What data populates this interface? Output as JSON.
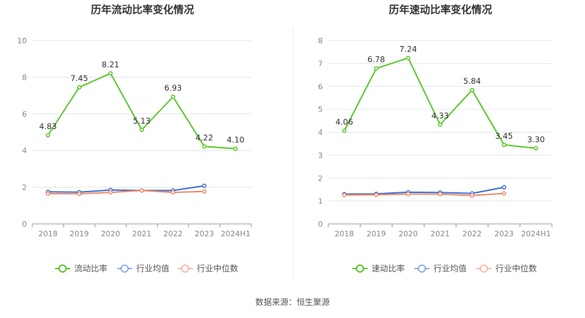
{
  "source": "数据来源：恒生聚源",
  "colors": {
    "main": "#5bc72b",
    "avg": "#3d6fd6",
    "median": "#ee8a66",
    "grid": "#e6e6e6",
    "axis": "#999999"
  },
  "chart_data": [
    {
      "type": "line",
      "title": "历年流动比率变化情况",
      "categories": [
        "2018",
        "2019",
        "2020",
        "2021",
        "2022",
        "2023",
        "2024H1"
      ],
      "ylim": [
        0,
        10
      ],
      "yticks": [
        0,
        2,
        4,
        6,
        8,
        10
      ],
      "grid": true,
      "legend_position": "bottom",
      "series": [
        {
          "name": "流动比率",
          "role": "main",
          "values": [
            4.83,
            7.45,
            8.21,
            5.13,
            6.93,
            4.22,
            4.1
          ],
          "labels": [
            "4.83",
            "7.45",
            "8.21",
            "5.13",
            "6.93",
            "4.22",
            "4.10"
          ]
        },
        {
          "name": "行业均值",
          "role": "avg",
          "values": [
            1.75,
            1.73,
            1.85,
            1.82,
            1.82,
            2.08,
            null
          ]
        },
        {
          "name": "行业中位数",
          "role": "median",
          "values": [
            1.65,
            1.64,
            1.72,
            1.82,
            1.72,
            1.77,
            null
          ]
        }
      ]
    },
    {
      "type": "line",
      "title": "历年速动比率变化情况",
      "categories": [
        "2018",
        "2019",
        "2020",
        "2021",
        "2022",
        "2023",
        "2024H1"
      ],
      "ylim": [
        0,
        8
      ],
      "yticks": [
        0,
        1,
        2,
        3,
        4,
        5,
        6,
        7,
        8
      ],
      "grid": true,
      "legend_position": "bottom",
      "series": [
        {
          "name": "速动比率",
          "role": "main",
          "values": [
            4.06,
            6.78,
            7.24,
            4.33,
            5.84,
            3.45,
            3.3
          ],
          "labels": [
            "4.06",
            "6.78",
            "7.24",
            "4.33",
            "5.84",
            "3.45",
            "3.30"
          ]
        },
        {
          "name": "行业均值",
          "role": "avg",
          "values": [
            1.3,
            1.31,
            1.38,
            1.37,
            1.33,
            1.6,
            null
          ]
        },
        {
          "name": "行业中位数",
          "role": "median",
          "values": [
            1.26,
            1.27,
            1.3,
            1.3,
            1.24,
            1.33,
            null
          ]
        }
      ]
    }
  ]
}
